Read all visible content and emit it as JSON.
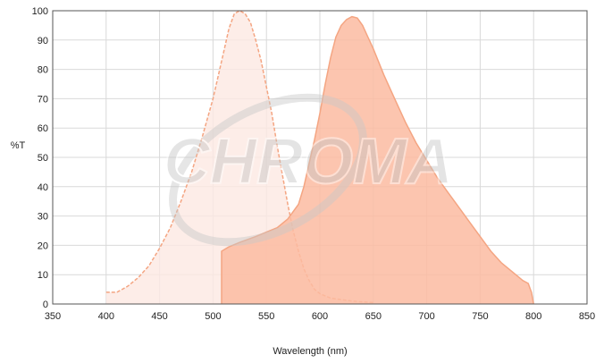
{
  "chart_data": {
    "type": "area",
    "title": "",
    "xlabel": "Wavelength (nm)",
    "ylabel": "%T",
    "xlim": [
      350,
      850
    ],
    "ylim": [
      0,
      100
    ],
    "x_ticks": [
      350,
      400,
      450,
      500,
      550,
      600,
      650,
      700,
      750,
      800,
      850
    ],
    "y_ticks": [
      0,
      10,
      20,
      30,
      40,
      50,
      60,
      70,
      80,
      90,
      100
    ],
    "grid": true,
    "legend": "none",
    "watermark": "CHROMA",
    "series": [
      {
        "style": "dashed-outline-light-fill",
        "color": "#f4a582",
        "fill": "#fde8e2",
        "points": [
          [
            400,
            4
          ],
          [
            410,
            4
          ],
          [
            420,
            6
          ],
          [
            430,
            9
          ],
          [
            440,
            13
          ],
          [
            450,
            19
          ],
          [
            460,
            26
          ],
          [
            470,
            35
          ],
          [
            480,
            45
          ],
          [
            490,
            57
          ],
          [
            500,
            70
          ],
          [
            505,
            78
          ],
          [
            510,
            86
          ],
          [
            515,
            94
          ],
          [
            520,
            99
          ],
          [
            525,
            100
          ],
          [
            530,
            99
          ],
          [
            535,
            96
          ],
          [
            540,
            90
          ],
          [
            545,
            83
          ],
          [
            550,
            74
          ],
          [
            555,
            65
          ],
          [
            560,
            54
          ],
          [
            565,
            44
          ],
          [
            570,
            34
          ],
          [
            575,
            25
          ],
          [
            580,
            18
          ],
          [
            585,
            12
          ],
          [
            590,
            8
          ],
          [
            595,
            5
          ],
          [
            600,
            3.5
          ],
          [
            610,
            2
          ],
          [
            620,
            1.5
          ],
          [
            630,
            1
          ],
          [
            640,
            0.7
          ],
          [
            650,
            0.5
          ]
        ]
      },
      {
        "style": "solid-fill",
        "color": "#f4a582",
        "fill": "#fcbba1",
        "points": [
          [
            508,
            0
          ],
          [
            508,
            18
          ],
          [
            515,
            19.5
          ],
          [
            525,
            21
          ],
          [
            540,
            23
          ],
          [
            550,
            24.5
          ],
          [
            560,
            26
          ],
          [
            570,
            29
          ],
          [
            580,
            34
          ],
          [
            585,
            40
          ],
          [
            590,
            48
          ],
          [
            595,
            56
          ],
          [
            600,
            65
          ],
          [
            605,
            75
          ],
          [
            610,
            84
          ],
          [
            615,
            91
          ],
          [
            620,
            95
          ],
          [
            625,
            97
          ],
          [
            630,
            98
          ],
          [
            635,
            97.5
          ],
          [
            640,
            95
          ],
          [
            645,
            91
          ],
          [
            650,
            87
          ],
          [
            660,
            78
          ],
          [
            670,
            70
          ],
          [
            680,
            62
          ],
          [
            690,
            55
          ],
          [
            700,
            49
          ],
          [
            710,
            43
          ],
          [
            720,
            38
          ],
          [
            730,
            33
          ],
          [
            740,
            28
          ],
          [
            750,
            23
          ],
          [
            760,
            18
          ],
          [
            770,
            14
          ],
          [
            780,
            11
          ],
          [
            790,
            8
          ],
          [
            795,
            7
          ],
          [
            798,
            4
          ],
          [
            800,
            0
          ]
        ]
      }
    ]
  }
}
